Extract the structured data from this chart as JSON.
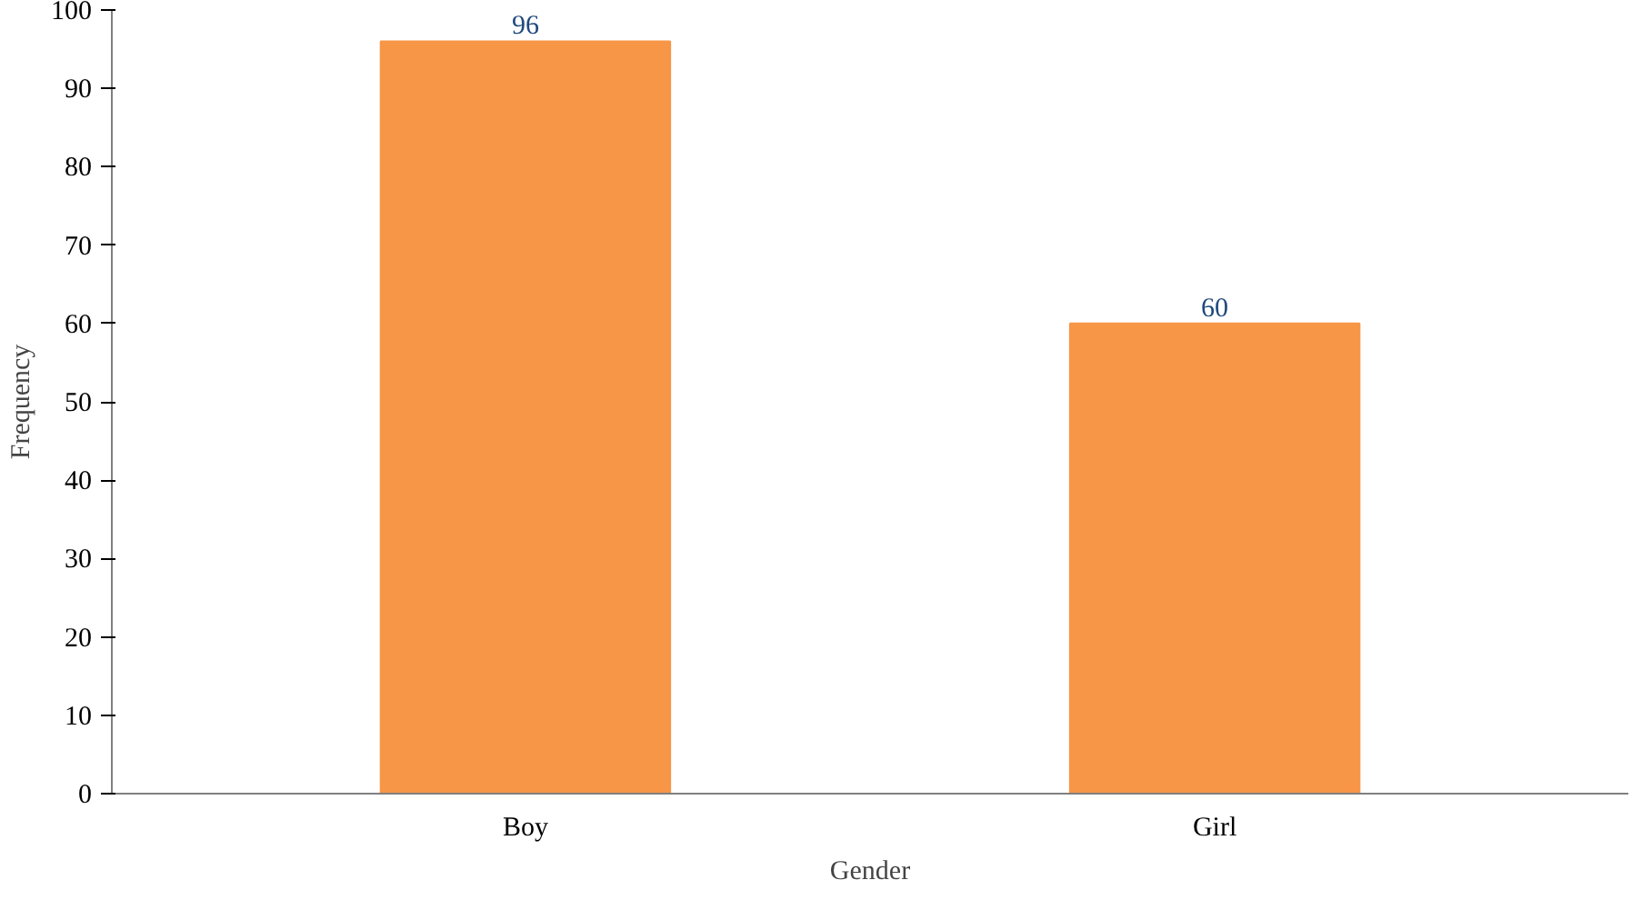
{
  "chart_data": {
    "type": "bar",
    "xlabel": "Gender",
    "ylabel": "Frequency",
    "categories": [
      "Boy",
      "Girl"
    ],
    "values": [
      96,
      60
    ],
    "color": "#f79646",
    "ylim": [
      0,
      100
    ],
    "yticks": [
      0,
      10,
      20,
      30,
      40,
      50,
      60,
      70,
      80,
      90,
      100
    ],
    "data_labels": true,
    "grid": false
  }
}
